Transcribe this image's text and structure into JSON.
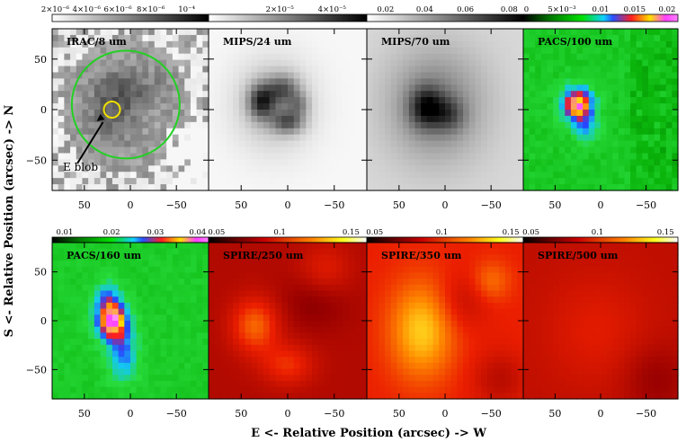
{
  "figure": {
    "ylabel": "S <- Relative Position (arcsec) -> N",
    "xlabel": "E <- Relative Position (arcsec) -> W",
    "panels": [
      {
        "id": "irac8",
        "label": "IRAC/8 um",
        "colormap": "gray",
        "colorbar_ticks": [
          "2×10⁻⁶",
          "4×10⁻⁶",
          "6×10⁻⁶",
          "8×10⁻⁶",
          "10⁻⁴"
        ],
        "annotation": "E blob"
      },
      {
        "id": "mips24",
        "label": "MIPS/24 um",
        "colormap": "gray",
        "colorbar_ticks": [
          "2×10⁻⁵",
          "4×10⁻⁵"
        ]
      },
      {
        "id": "mips70",
        "label": "MIPS/70 um",
        "colormap": "gray",
        "colorbar_ticks": [
          "0.02",
          "0.04",
          "0.06",
          "0.08"
        ]
      },
      {
        "id": "pacs100",
        "label": "PACS/100 um",
        "colormap": "rainbow",
        "colorbar_ticks": [
          "0",
          "5×10⁻³",
          "0.01",
          "0.015",
          "0.02"
        ]
      },
      {
        "id": "pacs160",
        "label": "PACS/160 um",
        "colormap": "rainbow",
        "colorbar_ticks": [
          "0.01",
          "0.02",
          "0.03",
          "0.04"
        ]
      },
      {
        "id": "spire250",
        "label": "SPIRE/250 um",
        "colormap": "heat",
        "colorbar_ticks": [
          "0.05",
          "0.1",
          "0.15"
        ]
      },
      {
        "id": "spire350",
        "label": "SPIRE/350 um",
        "colormap": "heat",
        "colorbar_ticks": [
          "0.05",
          "0.1",
          "0.15"
        ]
      },
      {
        "id": "spire500",
        "label": "SPIRE/500 um",
        "colormap": "heat",
        "colorbar_ticks": [
          "0.05",
          "0.1",
          "0.15"
        ]
      }
    ],
    "x_ticks": [
      "50",
      "0",
      "−50"
    ],
    "y_ticks": [
      "50",
      "0",
      "−50"
    ]
  }
}
